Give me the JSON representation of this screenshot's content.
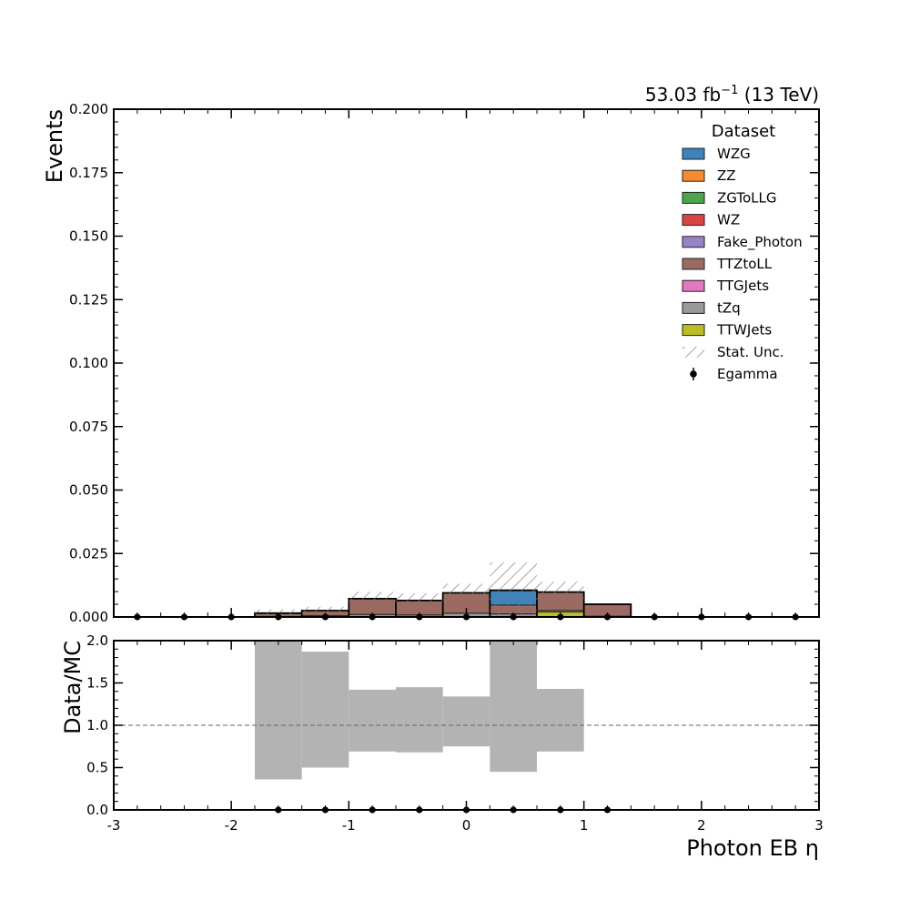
{
  "chart_data": {
    "type": "histogram",
    "lumi_label": "53.03 fb",
    "lumi_exponent": "−1",
    "energy_label": " (13 TeV)",
    "xlabel": "Photon EB η",
    "bin_edges": [
      -3.0,
      -2.6,
      -2.2,
      -1.8,
      -1.4,
      -1.0,
      -0.6,
      -0.2,
      0.2,
      0.6,
      1.0,
      1.4,
      1.8,
      2.2,
      2.6,
      3.0
    ],
    "main": {
      "ylabel": "Events",
      "ylim": [
        0,
        0.2
      ],
      "yticks": [
        "0.000",
        "0.025",
        "0.050",
        "0.075",
        "0.100",
        "0.125",
        "0.150",
        "0.175",
        "0.200"
      ],
      "ytick_values": [
        0,
        0.025,
        0.05,
        0.075,
        0.1,
        0.125,
        0.15,
        0.175,
        0.2
      ],
      "series": [
        {
          "name": "TTWJets",
          "color": "#bcbd22",
          "values": [
            0,
            0,
            0,
            0,
            0,
            0,
            0,
            0,
            0,
            0.002,
            0,
            0,
            0,
            0,
            0
          ]
        },
        {
          "name": "tZq",
          "color": "#999999",
          "values": [
            0,
            0,
            0,
            0.0002,
            0.0005,
            0.001,
            0.0008,
            0.0015,
            0.0012,
            0.0006,
            0.0003,
            0,
            0,
            0,
            0
          ]
        },
        {
          "name": "TTGJets",
          "color": "#e377c2",
          "values": [
            0,
            0,
            0,
            0,
            0,
            0,
            0,
            0,
            0,
            0,
            0,
            0,
            0,
            0,
            0
          ]
        },
        {
          "name": "TTZtoLL",
          "color": "#9c6a60",
          "values": [
            0,
            0,
            0,
            0.0013,
            0.002,
            0.0062,
            0.0057,
            0.008,
            0.0035,
            0.0072,
            0.0047,
            0,
            0,
            0,
            0
          ]
        },
        {
          "name": "Fake_Photon",
          "color": "#9a82c8",
          "values": [
            0,
            0,
            0,
            0,
            0,
            0,
            0,
            0,
            0,
            0,
            0,
            0,
            0,
            0,
            0
          ]
        },
        {
          "name": "WZ",
          "color": "#d94447",
          "values": [
            0,
            0,
            0,
            0,
            0,
            0,
            0,
            0,
            0,
            0,
            0,
            0,
            0,
            0,
            0
          ]
        },
        {
          "name": "ZGToLLG",
          "color": "#4ea64a",
          "values": [
            0,
            0,
            0,
            0,
            0,
            0,
            0,
            0,
            0,
            0,
            0,
            0,
            0,
            0,
            0
          ]
        },
        {
          "name": "ZZ",
          "color": "#f58a2f",
          "values": [
            0,
            0,
            0,
            0,
            0,
            0,
            0,
            0,
            0,
            0,
            0,
            0,
            0,
            0,
            0
          ]
        },
        {
          "name": "WZG",
          "color": "#3d84bd",
          "values": [
            0,
            0,
            0,
            0,
            0,
            0,
            0,
            0,
            0.0058,
            0,
            0,
            0,
            0,
            0,
            0
          ]
        }
      ],
      "stat_unc": {
        "low": [
          0,
          0,
          0,
          0.0005,
          0.001,
          0.0035,
          0.0033,
          0.0069,
          0.0005,
          0.0046,
          0.005,
          0,
          0,
          0,
          0
        ],
        "high": [
          0,
          0,
          0,
          0.003,
          0.004,
          0.0099,
          0.0093,
          0.0131,
          0.0215,
          0.0139,
          0.005,
          0,
          0,
          0,
          0
        ]
      },
      "data": {
        "name": "Egamma",
        "x": [
          -2.8,
          -2.4,
          -2.0,
          -1.6,
          -1.2,
          -0.8,
          -0.4,
          0.0,
          0.4,
          0.8,
          1.2,
          1.6,
          2.0,
          2.4,
          2.8
        ],
        "y": [
          0,
          0,
          0,
          0,
          0,
          0,
          0,
          0,
          0,
          0,
          0,
          0,
          0,
          0,
          0
        ]
      }
    },
    "ratio": {
      "ylabel": "Data/MC",
      "ylim": [
        0,
        2.0
      ],
      "yticks": [
        "0.0",
        "0.5",
        "1.0",
        "1.5",
        "2.0"
      ],
      "ytick_values": [
        0,
        0.5,
        1.0,
        1.5,
        2.0
      ],
      "reference_line": 1.0,
      "band_low": [
        null,
        null,
        null,
        0.36,
        0.5,
        0.69,
        0.68,
        0.75,
        0.45,
        0.69,
        null,
        null,
        null,
        null,
        null
      ],
      "band_high": [
        null,
        null,
        null,
        2.0,
        1.87,
        1.42,
        1.45,
        1.34,
        2.0,
        1.43,
        null,
        null,
        null,
        null,
        null
      ],
      "points_x": [
        -1.6,
        -1.2,
        -0.8,
        -0.4,
        0.0,
        0.4,
        0.8,
        1.2
      ],
      "points_y": [
        0,
        0,
        0,
        0,
        0,
        0,
        0,
        0
      ]
    },
    "xticks": [
      "-3",
      "-2",
      "-1",
      "0",
      "1",
      "2",
      "3"
    ],
    "xtick_values": [
      -3,
      -2,
      -1,
      0,
      1,
      2,
      3
    ],
    "legend": {
      "title": "Dataset",
      "placement": "top-right",
      "entries": [
        {
          "label": "WZG",
          "kind": "patch",
          "color": "#3d84bd"
        },
        {
          "label": "ZZ",
          "kind": "patch",
          "color": "#f58a2f"
        },
        {
          "label": "ZGToLLG",
          "kind": "patch",
          "color": "#4ea64a"
        },
        {
          "label": "WZ",
          "kind": "patch",
          "color": "#d94447"
        },
        {
          "label": "Fake_Photon",
          "kind": "patch",
          "color": "#9a82c8"
        },
        {
          "label": "TTZtoLL",
          "kind": "patch",
          "color": "#9c6a60"
        },
        {
          "label": "TTGJets",
          "kind": "patch",
          "color": "#e377c2"
        },
        {
          "label": "tZq",
          "kind": "patch",
          "color": "#999999"
        },
        {
          "label": "TTWJets",
          "kind": "patch",
          "color": "#bcbd22"
        },
        {
          "label": "Stat. Unc.",
          "kind": "hatch",
          "color": "#777777"
        },
        {
          "label": "Egamma",
          "kind": "marker",
          "color": "#000000"
        }
      ]
    }
  }
}
